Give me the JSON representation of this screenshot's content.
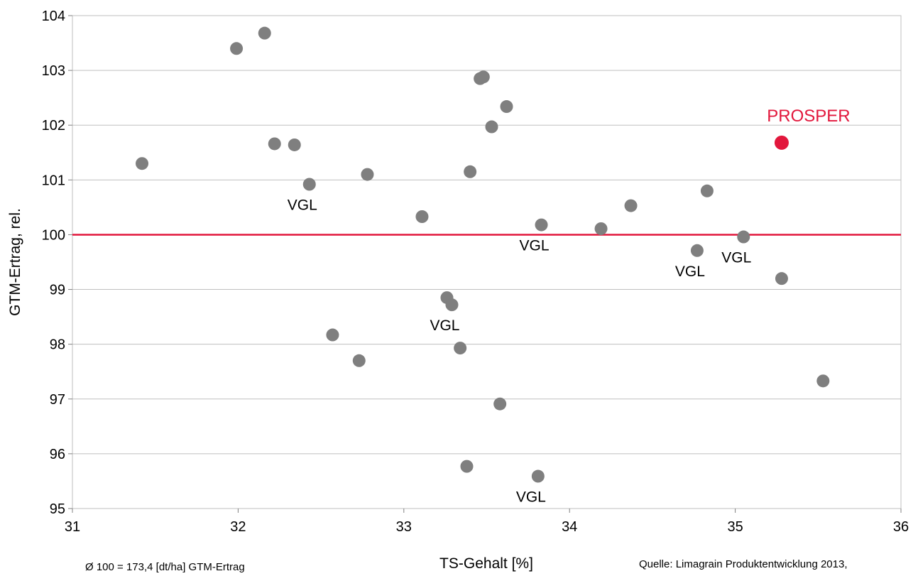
{
  "chart_data": {
    "type": "scatter",
    "xlabel": "TS-Gehalt [%]",
    "ylabel": "GTM-Ertrag, rel.",
    "xlim": [
      31,
      36
    ],
    "ylim": [
      95,
      104
    ],
    "xticks": [
      "31",
      "32",
      "33",
      "34",
      "35",
      "36"
    ],
    "yticks": [
      "95",
      "96",
      "97",
      "98",
      "99",
      "100",
      "101",
      "102",
      "103",
      "104"
    ],
    "grid": "horizontal",
    "reference_line": {
      "y": 100,
      "color": "#e2173c"
    },
    "points": [
      {
        "x": 31.42,
        "y": 101.3
      },
      {
        "x": 31.99,
        "y": 103.4
      },
      {
        "x": 32.16,
        "y": 103.68
      },
      {
        "x": 32.22,
        "y": 101.66
      },
      {
        "x": 32.34,
        "y": 101.64
      },
      {
        "x": 32.43,
        "y": 100.92,
        "label": "VGL"
      },
      {
        "x": 32.57,
        "y": 98.17
      },
      {
        "x": 32.73,
        "y": 97.7
      },
      {
        "x": 32.78,
        "y": 101.1
      },
      {
        "x": 33.11,
        "y": 100.33
      },
      {
        "x": 33.26,
        "y": 98.85
      },
      {
        "x": 33.29,
        "y": 98.72,
        "label": "VGL"
      },
      {
        "x": 33.34,
        "y": 97.93
      },
      {
        "x": 33.38,
        "y": 95.77
      },
      {
        "x": 33.4,
        "y": 101.15
      },
      {
        "x": 33.46,
        "y": 102.85
      },
      {
        "x": 33.48,
        "y": 102.88
      },
      {
        "x": 33.53,
        "y": 101.97
      },
      {
        "x": 33.58,
        "y": 96.91
      },
      {
        "x": 33.62,
        "y": 102.34
      },
      {
        "x": 33.81,
        "y": 95.59,
        "label": "VGL"
      },
      {
        "x": 33.83,
        "y": 100.18,
        "label": "VGL"
      },
      {
        "x": 34.19,
        "y": 100.11
      },
      {
        "x": 34.37,
        "y": 100.53
      },
      {
        "x": 34.77,
        "y": 99.71,
        "label": "VGL"
      },
      {
        "x": 34.83,
        "y": 100.8
      },
      {
        "x": 35.05,
        "y": 99.96,
        "label": "VGL"
      },
      {
        "x": 35.28,
        "y": 99.2
      },
      {
        "x": 35.53,
        "y": 97.33
      }
    ],
    "highlight": {
      "x": 35.28,
      "y": 101.68,
      "label": "PROSPER",
      "color": "#e2173c"
    },
    "point_color": "#7f7f7f"
  },
  "footer": {
    "left_note": "Ø 100 = 173,4 [dt/ha] GTM-Ertrag",
    "source": "Quelle: Limagrain Produktentwicklung 2013,"
  }
}
